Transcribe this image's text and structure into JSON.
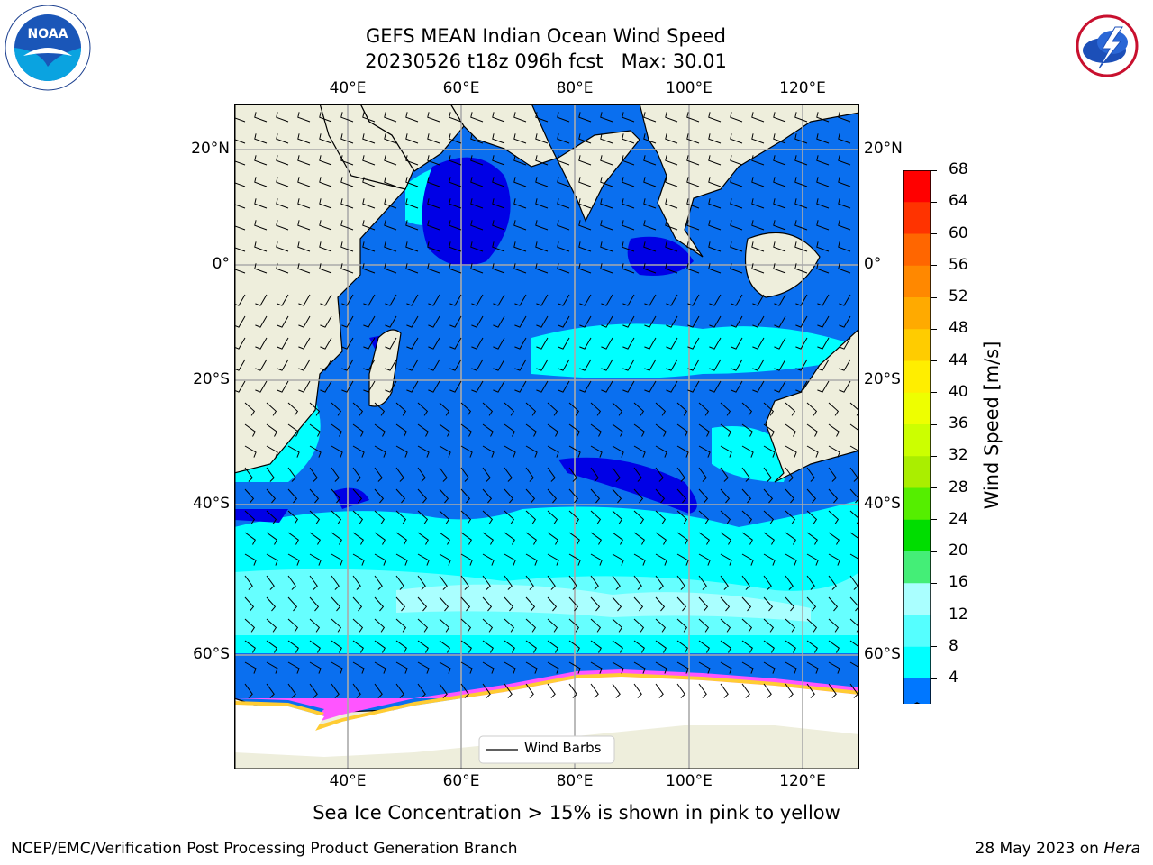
{
  "title": {
    "line1": "GEFS MEAN Indian Ocean Wind Speed",
    "line2": "20230526 t18z 096h fcst   Max: 30.01"
  },
  "logos": {
    "left_icon": "noaa-logo",
    "left_text": "NOAA",
    "right_icon": "nws-logo",
    "right_text": "NATIONAL WEATHER SERVICE"
  },
  "map": {
    "lon_labels": [
      "40°E",
      "60°E",
      "80°E",
      "100°E",
      "120°E"
    ],
    "lat_labels": [
      "20°N",
      "0°",
      "20°S",
      "40°S",
      "60°S"
    ],
    "colors": {
      "land": "#eeeedc",
      "ocean_base": "#0a6fef",
      "dark_blue": "#0000e6",
      "cyan": "#00ffff",
      "light_cyan": "#66ffff",
      "pale_cyan": "#aaffff",
      "ice": "#ffffff",
      "ice_edge_pink": "#ff55ff",
      "ice_edge_yellow": "#ffcc33"
    },
    "legend_label": "Wind Barbs"
  },
  "colorbar": {
    "label": "Wind Speed [m/s]",
    "ticks": [
      "68",
      "64",
      "60",
      "56",
      "52",
      "48",
      "44",
      "40",
      "36",
      "32",
      "28",
      "24",
      "20",
      "16",
      "12",
      "8",
      "4"
    ],
    "colors": [
      "#ff0000",
      "#ff3300",
      "#ff6600",
      "#ff8800",
      "#ffaa00",
      "#ffcc00",
      "#ffee00",
      "#eeff00",
      "#ccff00",
      "#aaee00",
      "#55ee00",
      "#00dd00",
      "#44ee77",
      "#aaffff",
      "#55ffff",
      "#00ffff",
      "#0077ff"
    ],
    "under_color": "#0000ee"
  },
  "footer": {
    "note": "Sea Ice Concentration > 15% is shown in pink to yellow",
    "left": "NCEP/EMC/Verification Post Processing Product Generation Branch",
    "right_prefix": "28 May 2023 on ",
    "right_machine": "Hera"
  }
}
